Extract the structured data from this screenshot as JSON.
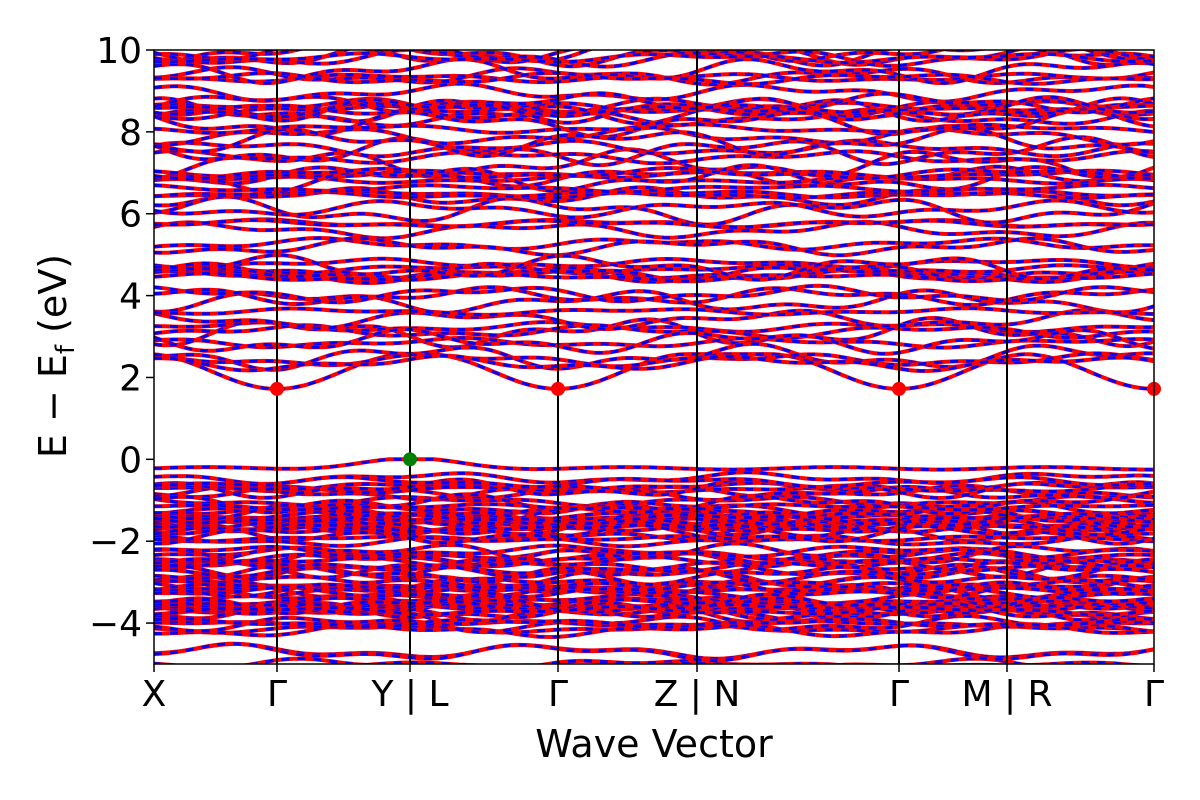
{
  "chart_data": {
    "type": "line",
    "title": "",
    "xlabel": "Wave Vector",
    "ylabel": {
      "prefix": "E − E",
      "subscript": "f",
      "suffix": " (eV)"
    },
    "ylim": [
      -5,
      10
    ],
    "yticks": [
      {
        "value": 10,
        "label": "10"
      },
      {
        "value": 8,
        "label": "8"
      },
      {
        "value": 6,
        "label": "6"
      },
      {
        "value": 4,
        "label": "4"
      },
      {
        "value": 2,
        "label": "2"
      },
      {
        "value": 0,
        "label": "0"
      },
      {
        "value": -2,
        "label": "−2"
      },
      {
        "value": -4,
        "label": "−4"
      }
    ],
    "kpath_ticks": [
      {
        "pos": 0.0,
        "label": "X"
      },
      {
        "pos": 0.123,
        "label": "Γ"
      },
      {
        "pos": 0.256,
        "label": "Y | L"
      },
      {
        "pos": 0.404,
        "label": "Γ"
      },
      {
        "pos": 0.543,
        "label": "Z | N"
      },
      {
        "pos": 0.745,
        "label": "Γ"
      },
      {
        "pos": 0.853,
        "label": "M | R"
      },
      {
        "pos": 1.0,
        "label": "Γ"
      }
    ],
    "grid": false,
    "legend": "none",
    "series": [
      {
        "color": "#ff0000",
        "style": "solid"
      },
      {
        "color": "#0000ff",
        "style": "dashed"
      }
    ],
    "band_gap": {
      "cbm": {
        "energy": 1.72,
        "positions": [
          0.123,
          0.404,
          0.745,
          1.0
        ],
        "color": "#ff0000"
      },
      "vbm": {
        "energy": 0.0,
        "positions": [
          0.256
        ],
        "color": "#008000"
      }
    }
  }
}
